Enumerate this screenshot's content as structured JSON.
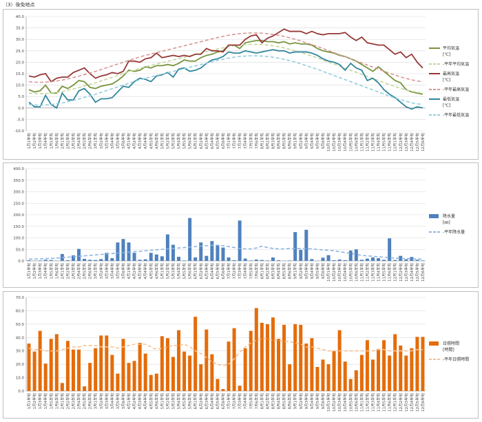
{
  "page_title": "（3）後免地点",
  "chart_data": [
    {
      "type": "line",
      "ylim": [
        -10,
        40
      ],
      "yticks": [
        "-10.0",
        "-5.0",
        "0.0",
        "5.0",
        "10.0",
        "15.0",
        "20.0",
        "25.0",
        "30.0",
        "35.0",
        "40.0"
      ],
      "categories": [
        "1月1半旬",
        "1月2半旬",
        "1月3半旬",
        "1月4半旬",
        "1月5半旬",
        "1月6半旬",
        "2月1半旬",
        "2月2半旬",
        "2月3半旬",
        "2月4半旬",
        "2月5半旬",
        "2月6半旬",
        "3月1半旬",
        "3月2半旬",
        "3月3半旬",
        "3月4半旬",
        "3月5半旬",
        "3月6半旬",
        "4月1半旬",
        "4月2半旬",
        "4月3半旬",
        "4月4半旬",
        "4月5半旬",
        "4月6半旬",
        "5月1半旬",
        "5月2半旬",
        "5月3半旬",
        "5月4半旬",
        "5月5半旬",
        "5月6半旬",
        "6月1半旬",
        "6月2半旬",
        "6月3半旬",
        "6月4半旬",
        "6月5半旬",
        "6月6半旬",
        "7月1半旬",
        "7月2半旬",
        "7月3半旬",
        "7月4半旬",
        "7月5半旬",
        "7月6半旬",
        "8月1半旬",
        "8月2半旬",
        "8月3半旬",
        "8月4半旬",
        "8月5半旬",
        "8月6半旬",
        "9月1半旬",
        "9月2半旬",
        "9月3半旬",
        "9月4半旬",
        "9月5半旬",
        "9月6半旬",
        "10月1半旬",
        "10月2半旬",
        "10月3半旬",
        "10月4半旬",
        "10月5半旬",
        "10月6半旬",
        "11月1半旬",
        "11月2半旬",
        "11月3半旬",
        "11月4半旬",
        "11月5半旬",
        "11月6半旬",
        "12月1半旬",
        "12月2半旬",
        "12月3半旬",
        "12月4半旬",
        "12月5半旬",
        "12月6半旬"
      ],
      "series": [
        {
          "name": "平均気温",
          "unit": "[℃]",
          "color": "#77933c",
          "dashed": false,
          "values": [
            8.0,
            7.0,
            7.5,
            10.0,
            6.5,
            6.5,
            9.5,
            8.5,
            10.0,
            12.0,
            11.5,
            9.0,
            8.5,
            9.5,
            10.0,
            10.5,
            12.0,
            14.0,
            16.5,
            16.0,
            16.5,
            18.0,
            17.5,
            18.5,
            18.5,
            19.0,
            18.5,
            19.5,
            21.0,
            20.5,
            20.5,
            22.0,
            23.0,
            23.5,
            24.5,
            25.0,
            27.5,
            27.5,
            26.0,
            28.5,
            29.0,
            29.5,
            29.5,
            29.0,
            29.0,
            28.5,
            29.0,
            28.0,
            28.5,
            28.0,
            28.0,
            27.5,
            26.0,
            25.0,
            24.5,
            24.0,
            23.0,
            22.5,
            21.5,
            20.5,
            19.0,
            17.5,
            16.0,
            18.0,
            16.0,
            14.0,
            12.0,
            11.0,
            8.0,
            7.0,
            6.5,
            6.0
          ]
        },
        {
          "name": "平年平均気温",
          "color": "#c3d69b",
          "dashed": true,
          "values": [
            6.5,
            6.3,
            6.2,
            6.3,
            6.5,
            6.8,
            7.2,
            7.7,
            8.3,
            8.9,
            9.6,
            10.3,
            11.0,
            11.8,
            12.6,
            13.4,
            14.2,
            15.0,
            15.8,
            16.6,
            17.3,
            18.0,
            18.6,
            19.2,
            19.8,
            20.4,
            21.0,
            21.6,
            22.2,
            22.8,
            23.4,
            24.0,
            24.6,
            25.2,
            25.8,
            26.3,
            26.8,
            27.2,
            27.5,
            27.7,
            27.8,
            27.8,
            27.7,
            27.5,
            27.2,
            26.8,
            26.3,
            25.7,
            25.0,
            24.3,
            23.5,
            22.7,
            21.9,
            21.0,
            20.1,
            19.2,
            18.3,
            17.4,
            16.5,
            15.6,
            14.7,
            13.8,
            12.9,
            12.0,
            11.1,
            10.2,
            9.4,
            8.6,
            7.9,
            7.3,
            6.8,
            6.5
          ]
        },
        {
          "name": "最高気温",
          "unit": "[℃]",
          "color": "#953735",
          "dashed": false,
          "values": [
            14.0,
            13.5,
            14.5,
            15.0,
            11.5,
            13.0,
            13.5,
            13.5,
            15.5,
            16.5,
            17.5,
            15.0,
            13.0,
            14.0,
            14.5,
            15.5,
            15.0,
            16.0,
            20.5,
            20.5,
            20.0,
            21.5,
            22.0,
            24.0,
            22.0,
            22.5,
            23.0,
            22.5,
            23.0,
            22.5,
            23.5,
            23.5,
            26.0,
            25.0,
            25.0,
            24.5,
            27.5,
            27.5,
            27.5,
            30.0,
            31.5,
            32.0,
            28.5,
            30.5,
            31.5,
            33.0,
            34.5,
            33.5,
            33.5,
            33.5,
            32.5,
            33.5,
            32.5,
            32.0,
            32.5,
            32.5,
            32.5,
            33.0,
            31.0,
            29.5,
            31.0,
            28.5,
            28.0,
            27.5,
            27.5,
            25.5,
            23.5,
            24.5,
            22.0,
            23.5,
            20.0,
            17.5
          ]
        },
        {
          "name": "平年最高気温",
          "color": "#d99694",
          "dashed": true,
          "values": [
            11.5,
            11.3,
            11.2,
            11.3,
            11.5,
            11.8,
            12.2,
            12.7,
            13.3,
            13.9,
            14.6,
            15.3,
            16.0,
            16.8,
            17.6,
            18.4,
            19.2,
            20.0,
            20.8,
            21.6,
            22.3,
            23.0,
            23.6,
            24.2,
            24.8,
            25.4,
            26.0,
            26.6,
            27.2,
            27.8,
            28.4,
            29.0,
            29.6,
            30.2,
            30.8,
            31.3,
            31.8,
            32.2,
            32.5,
            32.7,
            32.8,
            32.8,
            32.7,
            32.5,
            32.2,
            31.8,
            31.3,
            30.7,
            30.0,
            29.3,
            28.5,
            27.7,
            26.9,
            26.0,
            25.1,
            24.2,
            23.3,
            22.4,
            21.5,
            20.6,
            19.7,
            18.8,
            17.9,
            17.0,
            16.1,
            15.2,
            14.4,
            13.6,
            12.9,
            12.3,
            11.8,
            11.5
          ]
        },
        {
          "name": "最低気温",
          "unit": "[℃]",
          "color": "#31859c",
          "dashed": false,
          "values": [
            2.5,
            0.5,
            0.5,
            5.5,
            1.5,
            0.0,
            6.5,
            3.5,
            3.5,
            7.5,
            8.5,
            6.0,
            2.5,
            4.0,
            4.0,
            4.5,
            7.0,
            9.5,
            9.0,
            11.5,
            13.0,
            12.5,
            11.5,
            14.0,
            14.5,
            15.5,
            13.5,
            17.0,
            17.5,
            16.0,
            16.5,
            17.5,
            19.5,
            21.0,
            21.5,
            22.5,
            24.5,
            24.0,
            24.0,
            25.0,
            24.5,
            24.0,
            24.5,
            25.0,
            25.5,
            25.0,
            25.0,
            24.0,
            24.5,
            24.5,
            24.5,
            24.0,
            23.0,
            21.5,
            20.5,
            20.0,
            19.0,
            16.5,
            19.5,
            17.5,
            16.5,
            12.0,
            13.0,
            11.0,
            8.0,
            6.0,
            4.5,
            2.5,
            0.5,
            -0.5,
            0.5,
            0.0
          ]
        },
        {
          "name": "平年最低気温",
          "color": "#93cddd",
          "dashed": true,
          "values": [
            1.5,
            1.3,
            1.2,
            1.3,
            1.5,
            1.8,
            2.2,
            2.7,
            3.3,
            3.9,
            4.6,
            5.3,
            6.0,
            6.8,
            7.6,
            8.4,
            9.2,
            10.0,
            10.8,
            11.6,
            12.3,
            13.0,
            13.6,
            14.2,
            14.8,
            15.4,
            16.0,
            16.6,
            17.2,
            17.8,
            18.4,
            19.0,
            19.6,
            20.2,
            20.8,
            21.3,
            21.8,
            22.2,
            22.5,
            22.7,
            22.8,
            22.8,
            22.7,
            22.5,
            22.2,
            21.8,
            21.3,
            20.7,
            20.0,
            19.3,
            18.5,
            17.7,
            16.9,
            16.0,
            15.1,
            14.2,
            13.3,
            12.4,
            11.5,
            10.6,
            9.7,
            8.8,
            7.9,
            7.0,
            6.1,
            5.2,
            4.4,
            3.6,
            2.9,
            2.3,
            1.8,
            1.5
          ]
        }
      ]
    },
    {
      "type": "bar",
      "ylim": [
        0,
        400
      ],
      "yticks": [
        "0.0",
        "50.0",
        "100.0",
        "150.0",
        "200.0",
        "250.0",
        "300.0",
        "350.0",
        "400.0"
      ],
      "series": [
        {
          "name": "降水量",
          "unit": "[㎜]",
          "color": "#4f81bd",
          "values": [
            3,
            1,
            2,
            5,
            4,
            1,
            30,
            3,
            24,
            52,
            9,
            5,
            4,
            8,
            35,
            12,
            80,
            95,
            80,
            35,
            5,
            7,
            35,
            28,
            20,
            115,
            70,
            18,
            2,
            186,
            15,
            80,
            22,
            86,
            70,
            58,
            15,
            3,
            175,
            10,
            2,
            6,
            4,
            2,
            15,
            3,
            1,
            2,
            125,
            48,
            135,
            8,
            1,
            14,
            25,
            3,
            6,
            3,
            45,
            50,
            5,
            10,
            15,
            12,
            5,
            98,
            4,
            22,
            7,
            17,
            5,
            2
          ]
        },
        {
          "name": "平年降水量",
          "color": "#8db4e2",
          "dashed": true,
          "values": [
            8,
            8,
            9,
            10,
            11,
            12,
            14,
            16,
            18,
            20,
            22,
            24,
            26,
            28,
            30,
            32,
            34,
            36,
            38,
            40,
            42,
            44,
            46,
            48,
            50,
            52,
            54,
            56,
            58,
            60,
            62,
            64,
            66,
            68,
            68,
            66,
            62,
            58,
            54,
            52,
            52,
            56,
            64,
            58,
            54,
            52,
            52,
            54,
            54,
            54,
            54,
            52,
            50,
            48,
            46,
            44,
            40,
            36,
            32,
            28,
            24,
            22,
            20,
            18,
            16,
            14,
            12,
            11,
            10,
            9,
            8,
            8
          ]
        }
      ]
    },
    {
      "type": "bar",
      "ylim": [
        0,
        70
      ],
      "yticks": [
        "0.0",
        "10.0",
        "20.0",
        "30.0",
        "40.0",
        "50.0",
        "60.0",
        "70.0"
      ],
      "series": [
        {
          "name": "日照時間",
          "unit": "[時間]",
          "color": "#e46c0a",
          "values": [
            35.5,
            29.5,
            45.0,
            20.5,
            39.0,
            42.5,
            6.0,
            37.5,
            31.0,
            31.0,
            3.5,
            21.0,
            32.0,
            41.5,
            41.5,
            27.0,
            13.0,
            39.0,
            21.0,
            22.5,
            36.0,
            28.0,
            12.0,
            13.0,
            41.0,
            39.5,
            25.5,
            45.5,
            29.5,
            26.5,
            55.5,
            20.0,
            46.0,
            27.5,
            9.0,
            1.5,
            37.0,
            47.0,
            4.0,
            32.0,
            45.0,
            62.0,
            51.0,
            50.0,
            55.0,
            39.0,
            49.5,
            20.0,
            50.0,
            49.5,
            35.5,
            39.5,
            18.0,
            23.5,
            20.0,
            30.0,
            45.5,
            22.0,
            9.0,
            15.5,
            27.0,
            38.0,
            23.5,
            31.5,
            38.0,
            26.5,
            42.5,
            34.0,
            26.5,
            32.0,
            40.5,
            40.5
          ]
        },
        {
          "name": "平年日照時間",
          "color": "#fac090",
          "dashed": true,
          "values": [
            32,
            31,
            31,
            30,
            30,
            30,
            31,
            32,
            33,
            33,
            34,
            34,
            34,
            33,
            33,
            33,
            32,
            33,
            34,
            35,
            35,
            35,
            33,
            31,
            32,
            33,
            34,
            34,
            35,
            33,
            30,
            28,
            25,
            22,
            20,
            19,
            20,
            24,
            29,
            33,
            36,
            38,
            39,
            39,
            38,
            38,
            37,
            37,
            36,
            35,
            33,
            33,
            32,
            31,
            30,
            30,
            30,
            30,
            30,
            30,
            30,
            30,
            30,
            31,
            31,
            30,
            30,
            30,
            30,
            30,
            31,
            31
          ]
        }
      ]
    }
  ]
}
